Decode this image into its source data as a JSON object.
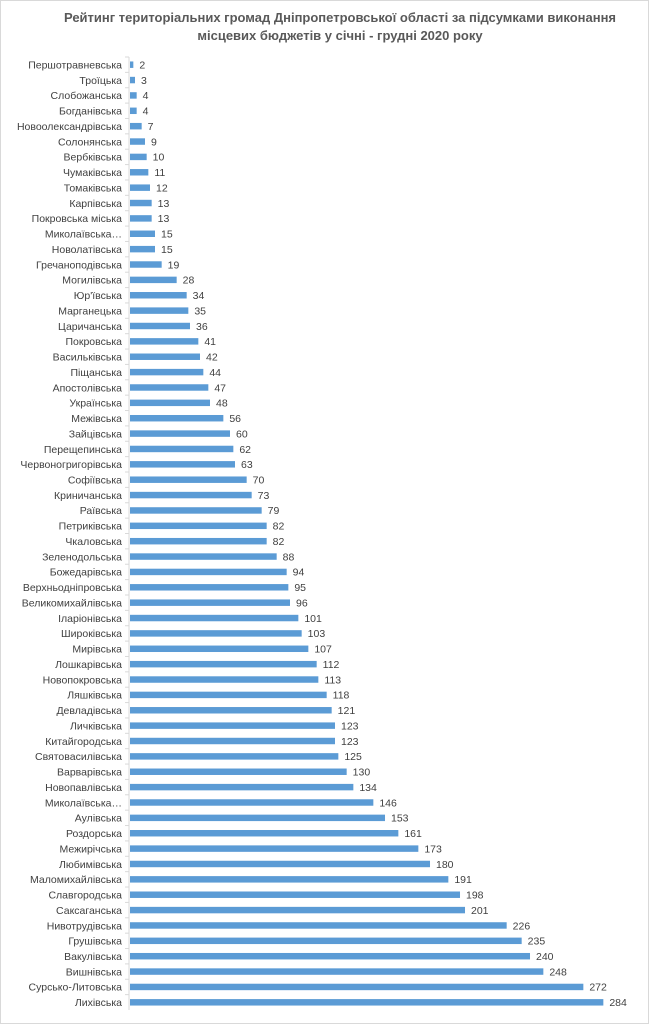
{
  "chart_data": {
    "type": "bar",
    "orientation": "horizontal",
    "title": "Рейтинг територіальних громад Дніпропетровської області за підсумками виконання місцевих бюджетів у січні - грудні 2020 року",
    "xlabel": "",
    "ylabel": "",
    "xlim": [
      0,
      300
    ],
    "grid": false,
    "legend": "none",
    "bar_color": "#5b9bd5",
    "categories": [
      "Першотравневська",
      "Троїцька",
      "Слобожанська",
      "Богданівська",
      "Новоолександрівська",
      "Солонянська",
      "Вербківська",
      "Чумаківська",
      "Томаківська",
      "Карпівська",
      "Покровська міська",
      "Миколаївська…",
      "Новолатівська",
      "Гречаноподівська",
      "Могилівська",
      "Юр'ївська",
      "Марганецька",
      "Царичанська",
      "Покровська",
      "Васильківська",
      "Піщанська",
      "Апостолівська",
      "Українська",
      "Межівська",
      "Зайцівська",
      "Перещепинська",
      "Червоногригорівська",
      "Софіївська",
      "Криничанська",
      "Раївська",
      "Петриківська",
      "Чкаловська",
      "Зеленодольська",
      "Божедарівська",
      "Верхньодніпровська",
      "Великомихайлівська",
      "Іларіонівська",
      "Широківська",
      "Мирівська",
      "Лошкарівська",
      "Новопокровська",
      "Ляшківська",
      "Девладівська",
      "Личківська",
      "Китайгородська",
      "Святовасилівська",
      "Варварівська",
      "Новопавлівська",
      "Миколаївська…",
      "Аулівська",
      "Роздорська",
      "Межирічська",
      "Любимівська",
      "Маломихайлівська",
      "Славгородська",
      "Саксаганська",
      "Нивотрудівська",
      "Грушівська",
      "Вакулівська",
      "Вишнівська",
      "Сурсько-Литовська",
      "Лихівська"
    ],
    "values": [
      2,
      3,
      4,
      4,
      7,
      9,
      10,
      11,
      12,
      13,
      13,
      15,
      15,
      19,
      28,
      34,
      35,
      36,
      41,
      42,
      44,
      47,
      48,
      56,
      60,
      62,
      63,
      70,
      73,
      79,
      82,
      82,
      88,
      94,
      95,
      96,
      101,
      103,
      107,
      112,
      113,
      118,
      121,
      123,
      123,
      125,
      130,
      134,
      146,
      153,
      161,
      173,
      180,
      191,
      198,
      201,
      226,
      235,
      240,
      248,
      272,
      284
    ]
  }
}
